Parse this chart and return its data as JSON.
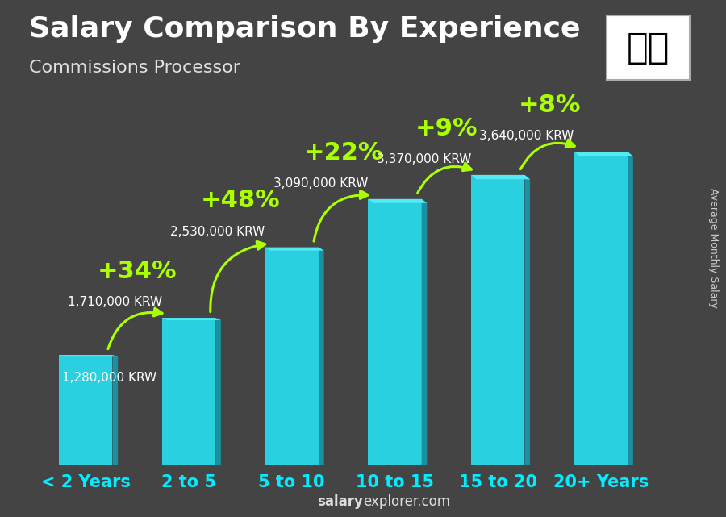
{
  "title": "Salary Comparison By Experience",
  "subtitle": "Commissions Processor",
  "ylabel": "Average Monthly Salary",
  "footer_bold": "salary",
  "footer_normal": "explorer.com",
  "categories": [
    "< 2 Years",
    "2 to 5",
    "5 to 10",
    "10 to 15",
    "15 to 20",
    "20+ Years"
  ],
  "values": [
    1280000,
    1710000,
    2530000,
    3090000,
    3370000,
    3640000
  ],
  "labels": [
    "1,280,000 KRW",
    "1,710,000 KRW",
    "2,530,000 KRW",
    "3,090,000 KRW",
    "3,370,000 KRW",
    "3,640,000 KRW"
  ],
  "pct_changes": [
    null,
    "+34%",
    "+48%",
    "+22%",
    "+9%",
    "+8%"
  ],
  "bar_color_face": "#29d0e0",
  "bar_color_right": "#1a90a0",
  "bar_color_top": "#55e8f5",
  "title_color": "#ffffff",
  "subtitle_color": "#e0e0e0",
  "label_color": "#ffffff",
  "pct_color": "#aaff00",
  "arrow_color": "#aaff00",
  "cat_color": "#00eeff",
  "footer_color": "#dddddd",
  "ylabel_color": "#cccccc",
  "bg_overlay": [
    0.05,
    0.05,
    0.1,
    0.45
  ],
  "title_fontsize": 26,
  "subtitle_fontsize": 16,
  "label_fontsize": 11,
  "pct_fontsize": 22,
  "cat_fontsize": 15,
  "ylim": [
    0,
    4500000
  ],
  "bar_width": 0.52,
  "depth_ratio": 0.1
}
